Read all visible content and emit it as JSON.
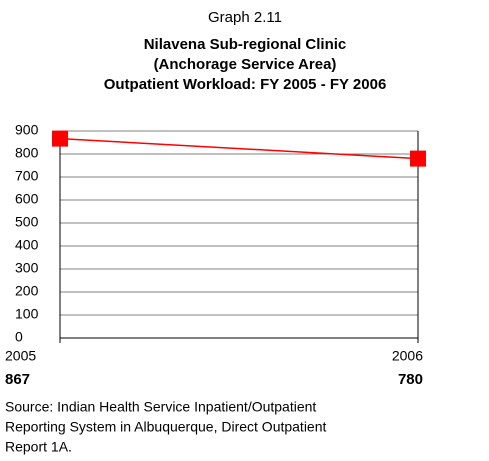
{
  "chart_data": {
    "type": "line",
    "heading": "Graph 2.11",
    "title": [
      "Nilavena Sub-regional Clinic",
      "(Anchorage Service Area)",
      "Outpatient Workload:  FY 2005 - FY 2006"
    ],
    "categories": [
      "2005",
      "2006"
    ],
    "series": [
      {
        "name": "Outpatient Workload",
        "color": "#ff0000",
        "values": [
          867,
          780
        ],
        "value_labels": [
          "867",
          "780"
        ]
      }
    ],
    "ylim": [
      0,
      900
    ],
    "yticks": [
      0,
      100,
      200,
      300,
      400,
      500,
      600,
      700,
      800,
      900
    ],
    "grid": true,
    "source": [
      "Source: Indian Health Service Inpatient/Outpatient",
      "Reporting System in Albuquerque, Direct Outpatient",
      "Report 1A."
    ]
  }
}
